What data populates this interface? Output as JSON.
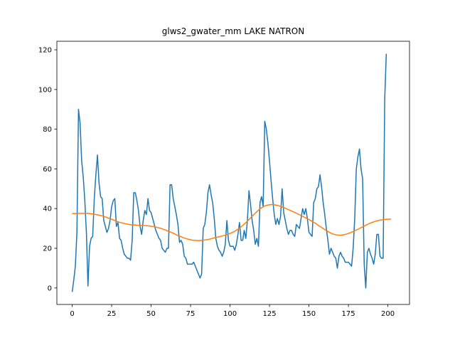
{
  "chart_data": {
    "type": "line",
    "title": "glws2_gwater_mm LAKE NATRON",
    "xlabel": "",
    "ylabel": "",
    "xlim": [
      -9.7,
      213.7
    ],
    "ylim": [
      -8.3,
      124.3
    ],
    "xticks": [
      0,
      25,
      50,
      75,
      100,
      125,
      150,
      175,
      200
    ],
    "yticks": [
      0,
      20,
      40,
      60,
      80,
      100,
      120
    ],
    "grid": false,
    "legend": false,
    "colors": {
      "series1": "#1f77b4",
      "series2": "#ff7f0e"
    },
    "series": [
      {
        "values": [
          -2,
          4,
          11,
          28,
          90,
          83,
          64,
          56,
          44,
          28,
          1,
          21,
          25,
          26,
          45,
          57,
          67,
          53,
          46,
          45,
          34,
          31,
          28,
          30,
          34,
          41,
          44,
          45,
          31,
          33,
          25,
          24,
          20,
          17,
          16,
          15,
          15,
          14,
          24,
          48,
          48,
          44,
          39,
          31,
          27,
          34,
          39,
          37,
          45,
          39,
          38,
          35,
          32,
          29,
          27,
          25,
          24,
          20,
          19,
          18,
          20,
          20,
          52,
          52,
          45,
          41,
          37,
          32,
          23,
          24,
          22,
          16,
          15,
          12,
          12,
          12,
          12,
          13,
          11,
          9,
          7,
          5,
          7,
          30,
          32,
          38,
          48,
          52,
          47,
          43,
          35,
          25,
          21,
          19,
          18,
          16,
          18,
          22,
          34,
          24,
          21,
          21,
          21,
          19,
          22,
          27,
          33,
          24,
          24,
          29,
          25,
          34,
          49,
          42,
          34,
          29,
          22,
          25,
          21,
          43,
          46,
          41,
          84,
          80,
          73,
          64,
          54,
          45,
          37,
          32,
          35,
          32,
          36,
          50,
          38,
          34,
          30,
          27,
          29,
          29,
          27,
          26,
          32,
          31,
          30,
          35,
          40,
          37,
          40,
          35,
          28,
          27,
          26,
          43,
          45,
          50,
          51,
          57,
          51,
          43,
          37,
          30,
          24,
          17,
          20,
          18,
          16,
          15,
          10,
          16,
          18,
          16,
          15,
          13,
          13,
          13,
          12,
          11,
          20,
          35,
          60,
          66,
          70,
          60,
          55,
          12,
          0,
          18,
          20,
          17,
          15,
          12,
          17,
          27,
          27,
          16,
          15,
          15,
          95,
          118
        ]
      },
      {
        "values": [
          37.5,
          37.5,
          37.5,
          37.6,
          37.6,
          37.6,
          37.6,
          37.6,
          37.6,
          37.6,
          37.6,
          37.5,
          37.4,
          37.3,
          37.2,
          37.0,
          36.9,
          36.7,
          36.5,
          36.3,
          36.0,
          35.8,
          35.5,
          35.2,
          34.9,
          34.6,
          34.3,
          34.0,
          33.7,
          33.4,
          33.1,
          32.9,
          32.7,
          32.5,
          32.3,
          32.2,
          32.0,
          31.9,
          31.8,
          31.8,
          31.7,
          31.6,
          31.6,
          31.6,
          31.5,
          31.5,
          31.4,
          31.4,
          31.3,
          31.2,
          31.1,
          31.0,
          30.9,
          30.7,
          30.5,
          30.3,
          30.1,
          29.8,
          29.5,
          29.2,
          28.9,
          28.6,
          28.3,
          27.9,
          27.6,
          27.2,
          26.8,
          26.5,
          26.1,
          25.8,
          25.5,
          25.2,
          24.9,
          24.7,
          24.5,
          24.3,
          24.1,
          24.0,
          24.0,
          23.9,
          23.9,
          23.9,
          24.0,
          24.1,
          24.2,
          24.3,
          24.4,
          24.6,
          24.8,
          25.0,
          25.2,
          25.4,
          25.6,
          25.8,
          26.0,
          26.2,
          26.4,
          26.6,
          26.9,
          27.2,
          27.5,
          27.8,
          28.2,
          28.6,
          29.1,
          29.6,
          30.2,
          30.8,
          31.5,
          32.2,
          32.9,
          33.7,
          34.5,
          35.3,
          36.1,
          36.9,
          37.7,
          38.5,
          39.2,
          39.9,
          40.4,
          40.9,
          41.3,
          41.6,
          41.8,
          41.9,
          42.0,
          42.0,
          41.9,
          41.8,
          41.6,
          41.4,
          41.1,
          40.8,
          40.5,
          40.2,
          39.8,
          39.5,
          39.1,
          38.8,
          38.4,
          38.1,
          37.7,
          37.3,
          36.9,
          36.5,
          36.1,
          35.7,
          35.3,
          34.9,
          34.5,
          34.0,
          33.6,
          33.1,
          32.6,
          32.1,
          31.5,
          31.0,
          30.5,
          30.0,
          29.4,
          28.9,
          28.5,
          28.0,
          27.6,
          27.2,
          27.0,
          26.8,
          26.7,
          26.6,
          26.6,
          26.7,
          26.8,
          27.0,
          27.2,
          27.5,
          27.8,
          28.1,
          28.5,
          28.8,
          29.2,
          29.6,
          30.0,
          30.4,
          30.8,
          31.2,
          31.6,
          32.0,
          32.4,
          32.7,
          33.0,
          33.3,
          33.6,
          33.8,
          34.0,
          34.2,
          34.3,
          34.4,
          34.5,
          34.6,
          34.6,
          34.7,
          34.7
        ]
      }
    ]
  }
}
